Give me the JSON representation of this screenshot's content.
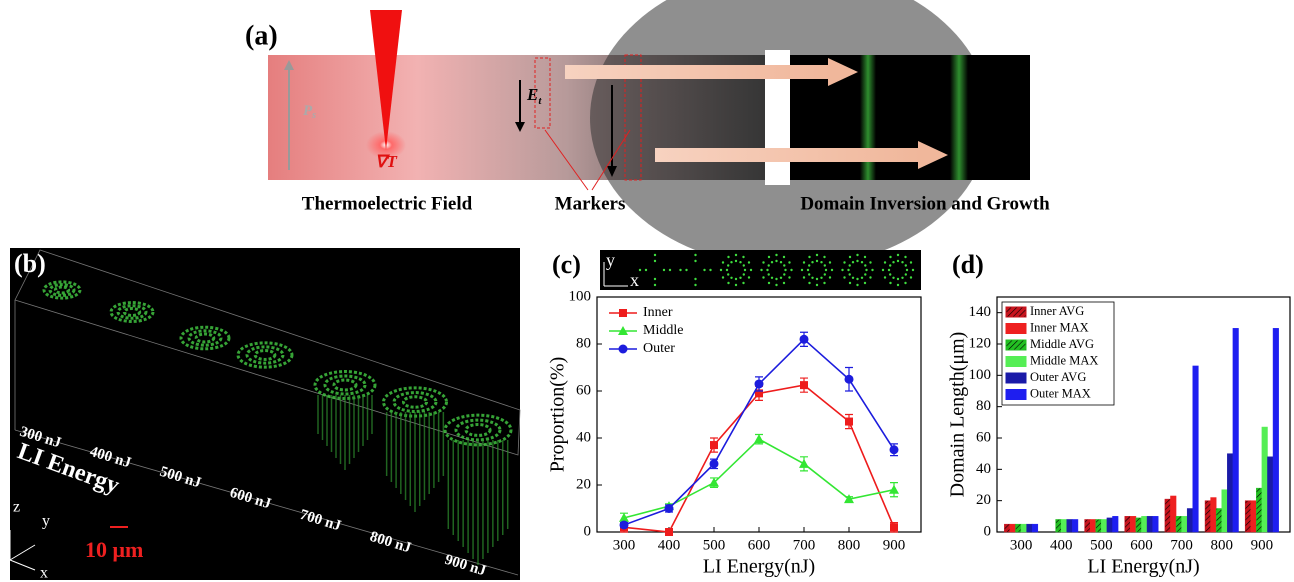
{
  "panel_a": {
    "label": "(a)",
    "polarization": {
      "symbol": "P",
      "subscript": "s"
    },
    "gradient": "∇T",
    "field": {
      "symbol": "E",
      "subscript": "t"
    },
    "captions": [
      "Thermoelectric Field",
      "Markers",
      "Domain Inversion and Growth"
    ]
  },
  "panel_b": {
    "label": "(b)",
    "energies": [
      "300 nJ",
      "400 nJ",
      "500 nJ",
      "600 nJ",
      "700 nJ",
      "800 nJ",
      "900 nJ"
    ],
    "axis_title": "LI Energy",
    "scale_bar": "10 μm",
    "axes": [
      "z",
      "y",
      "x"
    ]
  },
  "panel_c_inset": {
    "axes": [
      "y",
      "x"
    ]
  },
  "chart_data": [
    {
      "type": "line",
      "panel_label": "(c)",
      "x_label": "LI Energy(nJ)",
      "y_label": "Proportion(%)",
      "x": [
        300,
        400,
        500,
        600,
        700,
        800,
        900
      ],
      "xlim": [
        240,
        960
      ],
      "xticks": [
        300,
        400,
        500,
        600,
        700,
        800,
        900
      ],
      "ylim": [
        0,
        100
      ],
      "yticks": [
        0,
        20,
        40,
        60,
        80,
        100
      ],
      "legend": "upper-left",
      "series": [
        {
          "name": "Inner",
          "color": "#ee1c1c",
          "marker": "square",
          "values": [
            2,
            0,
            37,
            59,
            62.5,
            47,
            2
          ],
          "errors": [
            2,
            0,
            3,
            3,
            3,
            3,
            2
          ]
        },
        {
          "name": "Middle",
          "color": "#33e633",
          "marker": "triangle",
          "values": [
            6,
            11,
            21,
            39.5,
            29,
            14,
            18
          ],
          "errors": [
            2,
            1,
            2,
            2,
            3,
            1,
            3
          ]
        },
        {
          "name": "Outer",
          "color": "#1c1cdd",
          "marker": "circle",
          "values": [
            3,
            10,
            29,
            63,
            82,
            65,
            35
          ],
          "errors": [
            1,
            1.5,
            2,
            3,
            3,
            5,
            2.5
          ]
        }
      ]
    },
    {
      "type": "bar",
      "panel_label": "(d)",
      "x_label": "LI Energy(nJ)",
      "y_label": "Domain Length(μm)",
      "categories": [
        "300",
        "400",
        "500",
        "600",
        "700",
        "800",
        "900"
      ],
      "ylim": [
        0,
        150
      ],
      "yticks": [
        0,
        20,
        40,
        60,
        80,
        100,
        120,
        140
      ],
      "legend": "upper-left",
      "series": [
        {
          "name": "Inner AVG",
          "color": "#c8141e",
          "hatch": true,
          "values": [
            5,
            null,
            8,
            10,
            21,
            20,
            20
          ]
        },
        {
          "name": "Inner MAX",
          "color": "#ee2020",
          "hatch": false,
          "values": [
            5,
            null,
            8,
            10,
            23,
            22,
            20
          ]
        },
        {
          "name": "Middle AVG",
          "color": "#22c022",
          "hatch": true,
          "values": [
            5,
            8,
            8,
            9,
            10,
            15,
            28
          ]
        },
        {
          "name": "Middle MAX",
          "color": "#55ee55",
          "hatch": false,
          "values": [
            5,
            8,
            8,
            10,
            10,
            27,
            67
          ]
        },
        {
          "name": "Outer AVG",
          "color": "#1a1aa8",
          "hatch": false,
          "values": [
            5,
            8,
            9,
            10,
            15,
            50,
            48
          ]
        },
        {
          "name": "Outer MAX",
          "color": "#1e1ef0",
          "hatch": false,
          "values": [
            5,
            8,
            10,
            10,
            106,
            130,
            130
          ]
        }
      ]
    }
  ]
}
